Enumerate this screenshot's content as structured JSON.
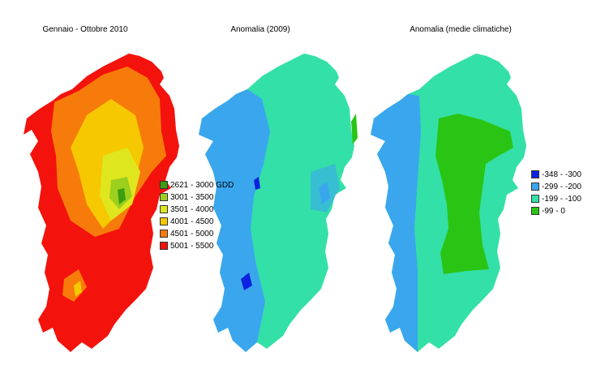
{
  "maps": [
    {
      "title": "Gennaio - Ottobre 2010",
      "legend": [
        {
          "label": "2621 - 3000 GDD",
          "color": "#3a9e0e"
        },
        {
          "label": "3001 - 3500",
          "color": "#9ccf1e"
        },
        {
          "label": "3501 - 4000",
          "color": "#e0e61e"
        },
        {
          "label": "4001 - 4500",
          "color": "#f5c800"
        },
        {
          "label": "4501 - 5000",
          "color": "#f77b0a"
        },
        {
          "label": "5001 - 5500",
          "color": "#f4120c"
        }
      ]
    },
    {
      "title": "Anomalia (2009)"
    },
    {
      "title": "Anomalia (medie climatiche)",
      "legend": [
        {
          "label": "-348 - -300",
          "color": "#0c22e0"
        },
        {
          "label": "-299 - -200",
          "color": "#3aa6ee"
        },
        {
          "label": "-199 - -100",
          "color": "#33e0a8"
        },
        {
          "label": "-99 - 0",
          "color": "#2ac414"
        }
      ]
    }
  ]
}
